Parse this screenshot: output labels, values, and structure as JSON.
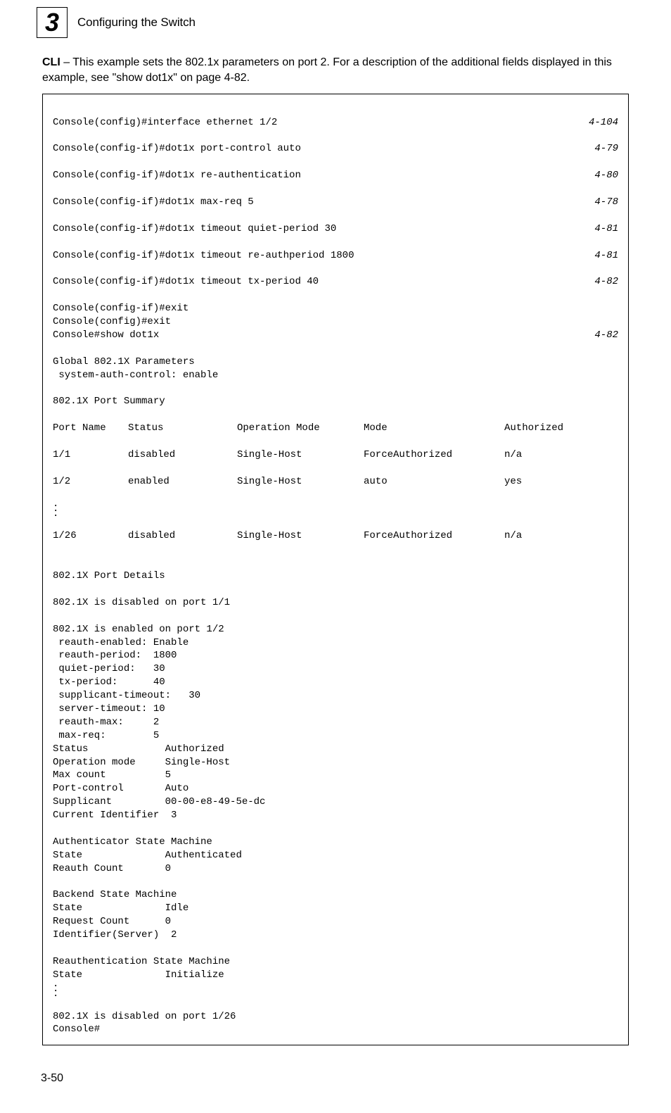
{
  "header": {
    "chapter_number": "3",
    "chapter_title": "Configuring the Switch"
  },
  "intro": {
    "bold_label": "CLI",
    "text_part1": " – This example sets the 802.1x parameters on port 2. For a description of the additional fields displayed in this example, see \"show dot1x\" on page 4-82."
  },
  "code": {
    "refs": {
      "r1": "4-104",
      "r2": "4-79",
      "r3": "4-80",
      "r4": "4-78",
      "r5": "4-81",
      "r6": "4-81",
      "r7": "4-82",
      "r8": "4-82"
    },
    "lines": {
      "l1": "Console(config)#interface ethernet 1/2",
      "l2": "Console(config-if)#dot1x port-control auto",
      "l3": "Console(config-if)#dot1x re-authentication",
      "l4": "Console(config-if)#dot1x max-req 5",
      "l5": "Console(config-if)#dot1x timeout quiet-period 30",
      "l6": "Console(config-if)#dot1x timeout re-authperiod 1800",
      "l7": "Console(config-if)#dot1x timeout tx-period 40",
      "l8": "Console(config-if)#exit",
      "l9": "Console(config)#exit",
      "l10": "Console#show dot1x",
      "l11": "Global 802.1X Parameters",
      "l12": " system-auth-control: enable",
      "blank1": "",
      "l13": "802.1X Port Summary",
      "blank2": ""
    },
    "table": {
      "h1": "Port Name",
      "h2": "Status",
      "h3": "Operation Mode",
      "h4": "Mode",
      "h5": "Authorized",
      "r1c1": "1/1",
      "r1c2": "disabled",
      "r1c3": "Single-Host",
      "r1c4": "ForceAuthorized",
      "r1c5": "n/a",
      "r2c1": "1/2",
      "r2c2": "enabled",
      "r2c3": "Single-Host",
      "r2c4": "auto",
      "r2c5": "yes",
      "r3c1": "1/26",
      "r3c2": "disabled",
      "r3c3": "Single-Host",
      "r3c4": "ForceAuthorized",
      "r3c5": "n/a"
    },
    "after": {
      "blank3": "",
      "l14": "802.1X Port Details",
      "blank4": "",
      "l15": "802.1X is disabled on port 1/1",
      "blank5": "",
      "l16": "802.1X is enabled on port 1/2",
      "l17": " reauth-enabled: Enable",
      "l18": " reauth-period:  1800",
      "l19": " quiet-period:   30",
      "l20": " tx-period:      40",
      "l21": " supplicant-timeout:   30",
      "l22": " server-timeout: 10",
      "l23": " reauth-max:     2",
      "l24": " max-req:        5",
      "l25": "Status             Authorized",
      "l26": "Operation mode     Single-Host",
      "l27": "Max count          5",
      "l28": "Port-control       Auto",
      "l29": "Supplicant         00-00-e8-49-5e-dc",
      "l30": "Current Identifier  3",
      "blank6": "",
      "l31": "Authenticator State Machine",
      "l32": "State              Authenticated",
      "l33": "Reauth Count       0",
      "blank7": "",
      "l34": "Backend State Machine",
      "l35": "State              Idle",
      "l36": "Request Count      0",
      "l37": "Identifier(Server)  2",
      "blank8": "",
      "l38": "Reauthentication State Machine",
      "l39": "State              Initialize",
      "l40": "802.1X is disabled on port 1/26",
      "l41": "Console#"
    }
  },
  "page_number": "3-50"
}
